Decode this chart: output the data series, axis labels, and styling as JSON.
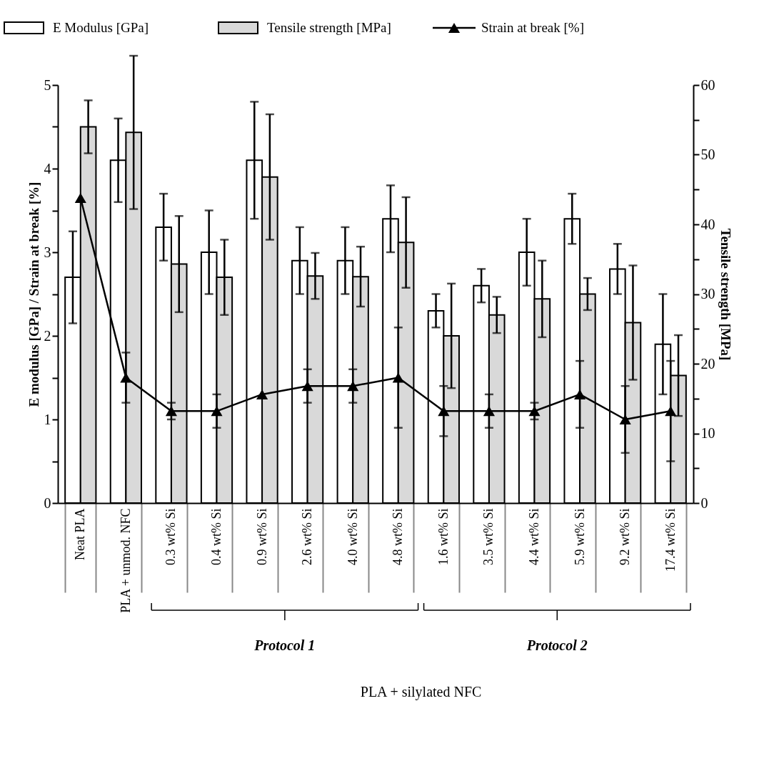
{
  "chart_data": {
    "type": "bar",
    "categories": [
      "Neat PLA",
      "PLA + unmod. NFC",
      "0.3 wt% Si",
      "0.4 wt% Si",
      "0.9 wt% Si",
      "2.6 wt% Si",
      "4.0 wt% Si",
      "4.8 wt% Si",
      "1.6 wt% Si",
      "3.5 wt% Si",
      "4.4 wt% Si",
      "5.9 wt% Si",
      "9.2 wt% Si",
      "17.4 wt% Si"
    ],
    "ylabel": "E modulus [GPa] / Strain at break [%]",
    "y2label": "Tensile strength [MPa]",
    "ylim": [
      0,
      5
    ],
    "yticks": [
      0,
      {
        "value": 0.5,
        "label": null
      },
      1,
      {
        "value": 1.5,
        "label": null
      },
      2,
      {
        "value": 2.5,
        "label": null
      },
      3,
      {
        "value": 3.5,
        "label": null
      },
      4,
      {
        "value": 4.5,
        "label": null
      },
      5
    ],
    "y2lim": [
      0,
      60
    ],
    "y2ticks": [
      0,
      {
        "value": 5,
        "label": null
      },
      10,
      {
        "value": 15,
        "label": null
      },
      20,
      {
        "value": 25,
        "label": null
      },
      30,
      {
        "value": 35,
        "label": null
      },
      40,
      {
        "value": 45,
        "label": null
      },
      50,
      {
        "value": 55,
        "label": null
      },
      60
    ],
    "series": [
      {
        "name": "E Modulus [GPa]",
        "color": "#ffffff",
        "values": [
          2.7,
          4.1,
          3.3,
          3.0,
          4.1,
          2.9,
          2.9,
          3.4,
          2.3,
          2.6,
          3.0,
          3.4,
          2.8,
          1.9
        ],
        "errors": [
          0.55,
          0.5,
          0.4,
          0.5,
          0.7,
          0.4,
          0.4,
          0.4,
          0.2,
          0.2,
          0.4,
          0.3,
          0.3,
          0.6
        ]
      },
      {
        "name": "Tensile strength [MPa]",
        "axis": "y2",
        "color": "#d9d9d9",
        "values": [
          54,
          53.2,
          34.3,
          32.4,
          46.8,
          32.6,
          32.5,
          37.4,
          24,
          27,
          29.3,
          30,
          25.9,
          18.3
        ],
        "errors": [
          3.8,
          11,
          6.9,
          5.4,
          9,
          3.3,
          4.3,
          6.5,
          7.5,
          2.6,
          5.5,
          2.3,
          8.2,
          5.8
        ]
      },
      {
        "name": "Strain at break [%]",
        "type": "line",
        "color": "#000000",
        "marker": "triangle",
        "line_style": "solid",
        "values": [
          3.65,
          1.5,
          1.1,
          1.1,
          1.3,
          1.4,
          1.4,
          1.5,
          1.1,
          1.1,
          1.1,
          1.3,
          1.0,
          1.1
        ],
        "errors": [
          null,
          0.3,
          0.1,
          0.2,
          null,
          0.2,
          0.2,
          0.6,
          0.3,
          0.2,
          0.1,
          0.4,
          0.4,
          0.6
        ]
      }
    ],
    "annotations": [
      "Protocol 1",
      "Protocol 2",
      "PLA + silylated NFC"
    ],
    "legend": "top",
    "grid": false
  }
}
